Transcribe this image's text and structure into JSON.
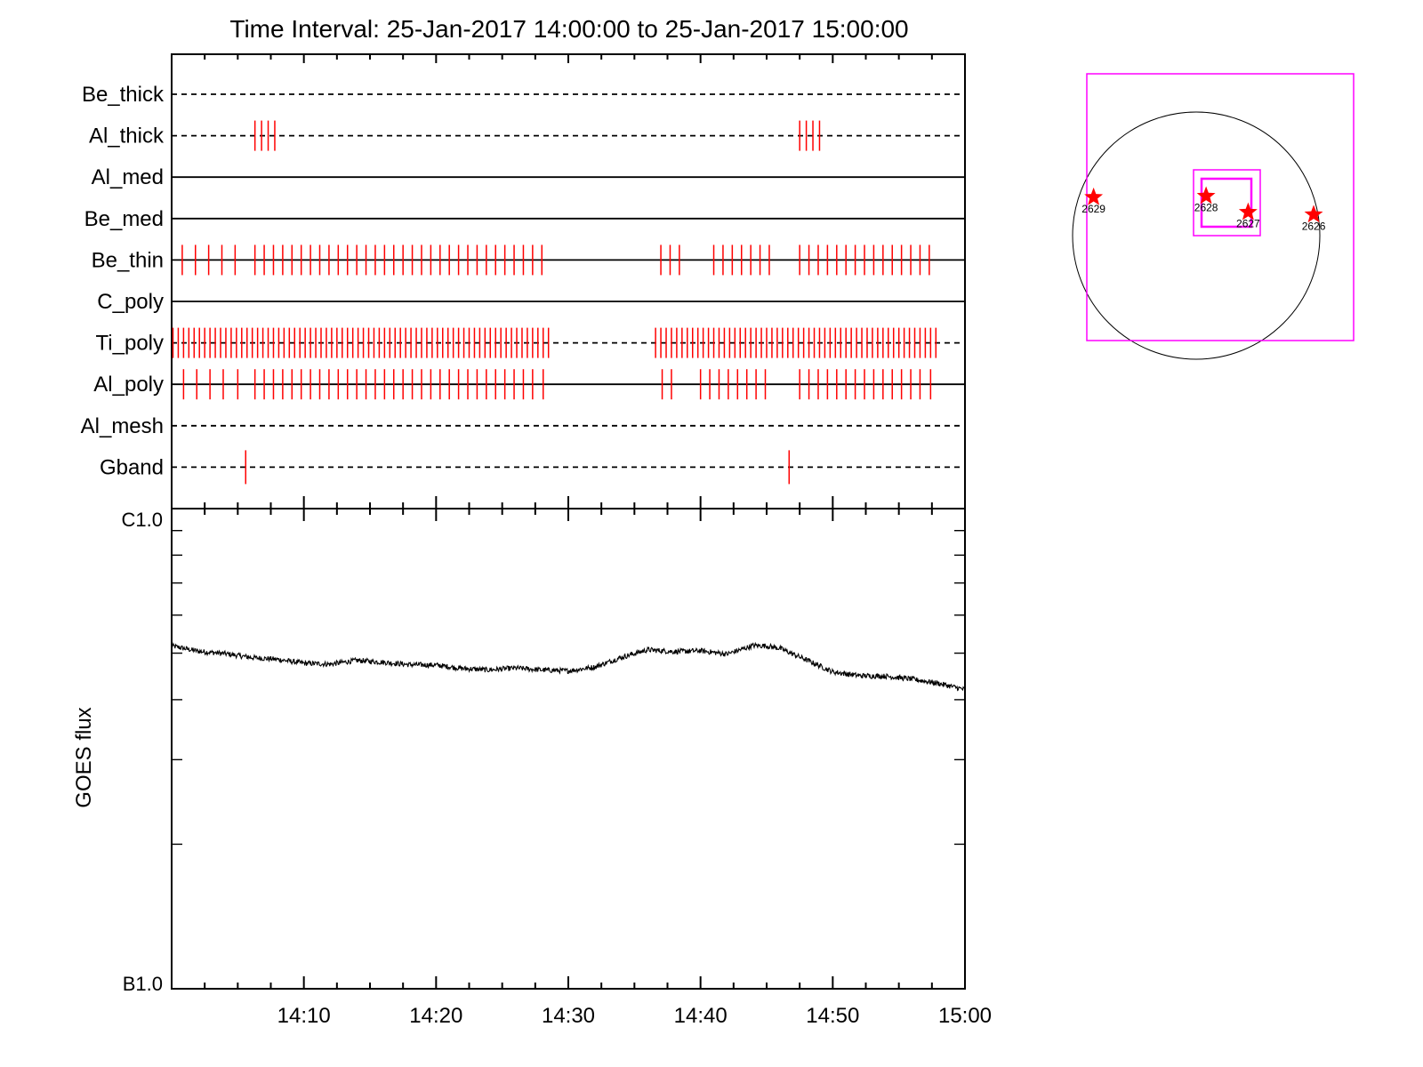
{
  "title": "Time Interval: 25-Jan-2017 14:00:00 to 25-Jan-2017 15:00:00",
  "colors": {
    "axis": "#000000",
    "event": "#ff0000",
    "box": "#ff00ff",
    "curve": "#000000"
  },
  "chart_data": [
    {
      "type": "timeline",
      "x_range_minutes": [
        0,
        60
      ],
      "x_start": "14:00",
      "x_end": "15:00",
      "rows": [
        {
          "label": "Be_thick",
          "style": "dashed",
          "events": []
        },
        {
          "label": "Al_thick",
          "style": "dashed",
          "events": [
            6.3,
            6.8,
            7.3,
            7.8,
            47.5,
            48.0,
            48.5,
            49.0
          ]
        },
        {
          "label": "Al_med",
          "style": "solid",
          "events": []
        },
        {
          "label": "Be_med",
          "style": "solid",
          "events": []
        },
        {
          "label": "Be_thin",
          "style": "solid",
          "events": [
            0.8,
            1.8,
            2.8,
            3.8,
            4.8,
            6.3,
            7.0,
            7.7,
            8.4,
            9.1,
            9.8,
            10.5,
            11.2,
            11.9,
            12.6,
            13.3,
            14.0,
            14.7,
            15.4,
            16.1,
            16.8,
            17.5,
            18.2,
            18.9,
            19.6,
            20.3,
            21.0,
            21.7,
            22.4,
            23.1,
            23.8,
            24.5,
            25.2,
            25.9,
            26.6,
            27.3,
            28.0,
            37.0,
            37.7,
            38.4,
            41.0,
            41.7,
            42.4,
            43.1,
            43.8,
            44.5,
            45.2,
            47.5,
            48.2,
            48.9,
            49.6,
            50.3,
            51.0,
            51.7,
            52.4,
            53.1,
            53.8,
            54.5,
            55.2,
            55.9,
            56.6,
            57.3
          ]
        },
        {
          "label": "C_poly",
          "style": "solid",
          "events": []
        },
        {
          "label": "Ti_poly",
          "style": "dashed",
          "events": [
            0.1,
            0.5,
            0.9,
            1.3,
            1.7,
            2.1,
            2.5,
            2.9,
            3.3,
            3.7,
            4.1,
            4.5,
            4.9,
            5.3,
            5.7,
            6.1,
            6.5,
            6.9,
            7.3,
            7.7,
            8.1,
            8.5,
            8.9,
            9.3,
            9.7,
            10.1,
            10.5,
            10.9,
            11.3,
            11.7,
            12.1,
            12.5,
            12.9,
            13.3,
            13.7,
            14.1,
            14.5,
            14.9,
            15.3,
            15.7,
            16.1,
            16.5,
            16.9,
            17.3,
            17.7,
            18.1,
            18.5,
            18.9,
            19.3,
            19.7,
            20.1,
            20.5,
            20.9,
            21.3,
            21.7,
            22.1,
            22.5,
            22.9,
            23.3,
            23.7,
            24.1,
            24.5,
            24.9,
            25.3,
            25.7,
            26.1,
            26.5,
            26.9,
            27.3,
            27.7,
            28.1,
            28.5,
            36.6,
            37.0,
            37.4,
            37.8,
            38.2,
            38.6,
            39.0,
            39.4,
            39.8,
            40.2,
            40.6,
            41.0,
            41.4,
            41.8,
            42.2,
            42.6,
            43.0,
            43.4,
            43.8,
            44.2,
            44.6,
            45.0,
            45.4,
            45.8,
            46.2,
            46.6,
            47.0,
            47.4,
            47.8,
            48.2,
            48.6,
            49.0,
            49.4,
            49.8,
            50.2,
            50.6,
            51.0,
            51.4,
            51.8,
            52.2,
            52.6,
            53.0,
            53.4,
            53.8,
            54.2,
            54.6,
            55.0,
            55.4,
            55.8,
            56.2,
            56.6,
            57.0,
            57.4,
            57.8
          ]
        },
        {
          "label": "Al_poly",
          "style": "solid",
          "events": [
            0.9,
            1.9,
            2.9,
            3.9,
            5.0,
            6.3,
            7.0,
            7.7,
            8.4,
            9.1,
            9.8,
            10.5,
            11.2,
            11.9,
            12.6,
            13.3,
            14.0,
            14.7,
            15.4,
            16.1,
            16.8,
            17.5,
            18.2,
            18.9,
            19.6,
            20.3,
            21.0,
            21.7,
            22.4,
            23.1,
            23.8,
            24.5,
            25.2,
            25.9,
            26.6,
            27.3,
            28.1,
            37.1,
            37.8,
            40.0,
            40.7,
            41.4,
            42.1,
            42.8,
            43.5,
            44.2,
            44.9,
            47.5,
            48.2,
            48.9,
            49.6,
            50.3,
            51.0,
            51.7,
            52.4,
            53.1,
            53.8,
            54.5,
            55.2,
            55.9,
            56.6,
            57.4
          ]
        },
        {
          "label": "Al_mesh",
          "style": "dashed",
          "events": []
        },
        {
          "label": "Gband",
          "style": "dashed",
          "events": [
            5.6,
            46.7
          ]
        }
      ]
    },
    {
      "type": "line",
      "ylabel": "GOES flux",
      "xlabel": "",
      "y_tick_labels": [
        "C1.0",
        "B1.0"
      ],
      "x_tick_labels": [
        "14:10",
        "14:20",
        "14:30",
        "14:40",
        "14:50",
        "15:00"
      ],
      "x_ticks_minutes": [
        10,
        20,
        30,
        40,
        50,
        60
      ],
      "y_scale": "log",
      "ylim_log10": [
        -7,
        -6
      ],
      "x_minutes": [
        0,
        2,
        4,
        6,
        8,
        10,
        12,
        14,
        16,
        18,
        20,
        22,
        24,
        26,
        28,
        30,
        32,
        34,
        36,
        38,
        40,
        42,
        44,
        45,
        46,
        48,
        50,
        52,
        54,
        56,
        58,
        60
      ],
      "log10_flux": [
        -6.286,
        -6.297,
        -6.302,
        -6.31,
        -6.314,
        -6.322,
        -6.324,
        -6.316,
        -6.32,
        -6.325,
        -6.326,
        -6.333,
        -6.336,
        -6.332,
        -6.336,
        -6.338,
        -6.33,
        -6.31,
        -6.294,
        -6.298,
        -6.296,
        -6.303,
        -6.285,
        -6.286,
        -6.291,
        -6.315,
        -6.34,
        -6.348,
        -6.349,
        -6.355,
        -6.364,
        -6.377
      ]
    },
    {
      "type": "scatter",
      "title": "",
      "markers": [
        {
          "label": "2629",
          "pos": [
            -0.83,
            0.31
          ]
        },
        {
          "label": "2628",
          "pos": [
            0.08,
            0.32
          ]
        },
        {
          "label": "2627",
          "pos": [
            0.42,
            0.19
          ]
        },
        {
          "label": "2626",
          "pos": [
            0.95,
            0.17
          ]
        }
      ]
    }
  ]
}
